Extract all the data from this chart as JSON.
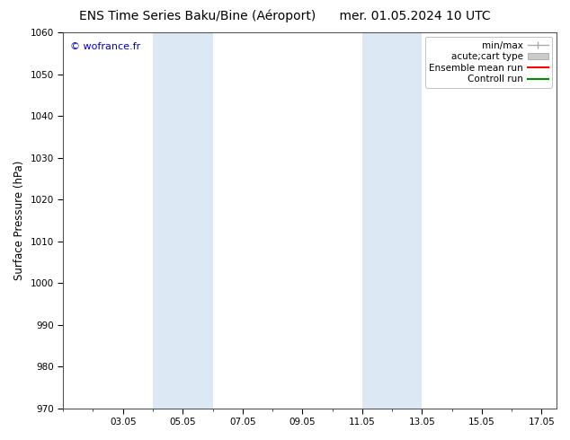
{
  "title_left": "ENS Time Series Baku/Bine (Aéroport)",
  "title_right": "mer. 01.05.2024 10 UTC",
  "ylabel": "Surface Pressure (hPa)",
  "ylim": [
    970,
    1060
  ],
  "yticks": [
    970,
    980,
    990,
    1000,
    1010,
    1020,
    1030,
    1040,
    1050,
    1060
  ],
  "xlim": [
    1.0,
    17.5
  ],
  "xtick_labels": [
    "03.05",
    "05.05",
    "07.05",
    "09.05",
    "11.05",
    "13.05",
    "15.05",
    "17.05"
  ],
  "xtick_days": [
    3,
    5,
    7,
    9,
    11,
    13,
    15,
    17
  ],
  "shaded_bands": [
    {
      "x_start_day": 4.0,
      "x_end_day": 6.0
    },
    {
      "x_start_day": 11.0,
      "x_end_day": 13.0
    }
  ],
  "shaded_color": "#dce9f5",
  "watermark_text": "© wofrance.fr",
  "watermark_color": "#0000cc",
  "legend_items": [
    {
      "label": "min/max",
      "color": "#aaaaaa",
      "lw": 1.0,
      "style": "minmax"
    },
    {
      "label": "acute;cart type",
      "color": "#cccccc",
      "lw": 6.0,
      "style": "band"
    },
    {
      "label": "Ensemble mean run",
      "color": "#ff0000",
      "lw": 1.5,
      "style": "line"
    },
    {
      "label": "Controll run",
      "color": "#008800",
      "lw": 1.5,
      "style": "line"
    }
  ],
  "bg_color": "#ffffff",
  "axes_bg_color": "#ffffff",
  "title_fontsize": 10,
  "tick_fontsize": 7.5,
  "ylabel_fontsize": 8.5,
  "legend_fontsize": 7.5,
  "watermark_fontsize": 8
}
